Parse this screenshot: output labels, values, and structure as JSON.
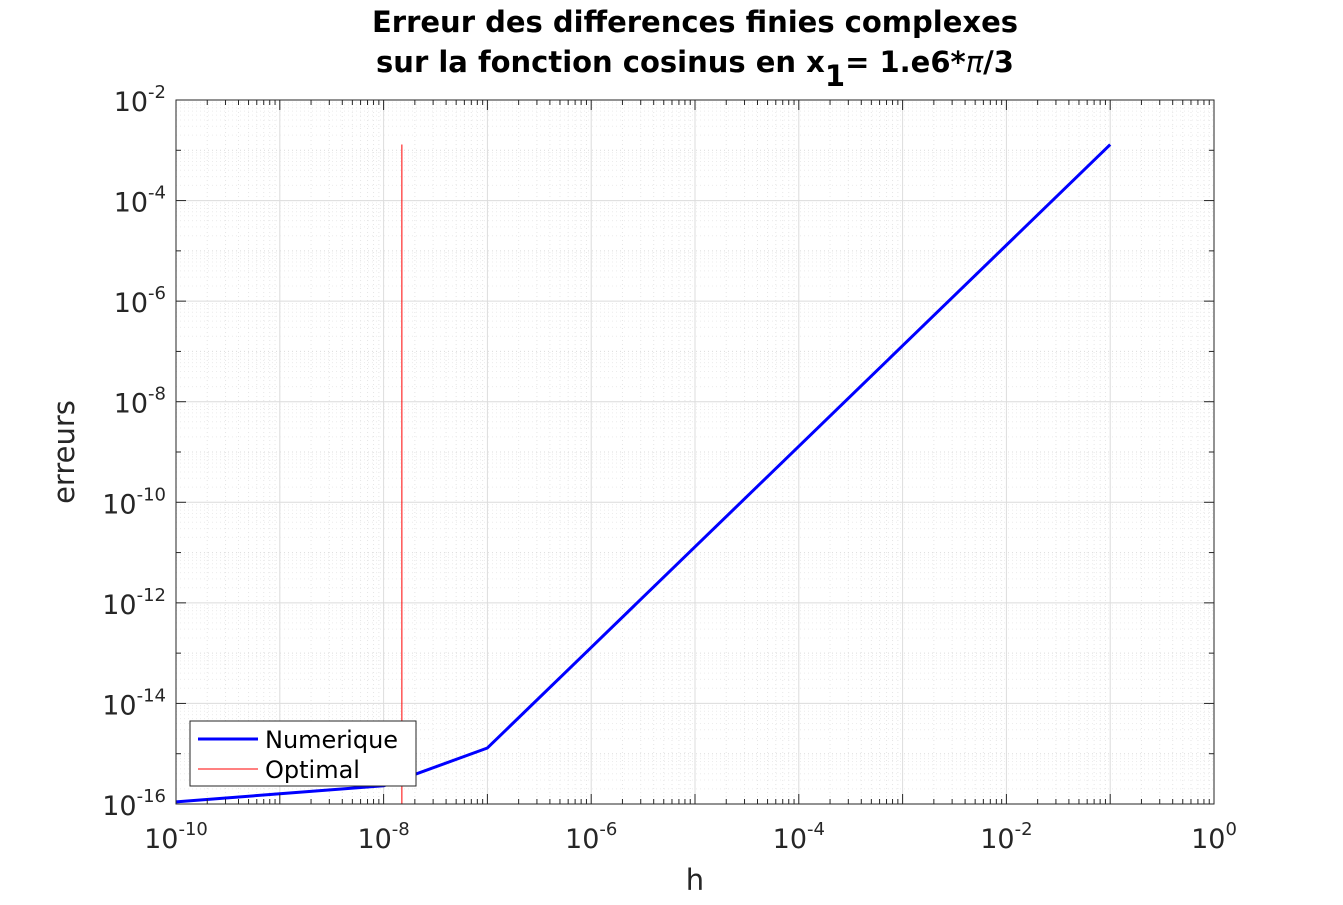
{
  "chart_data": {
    "type": "line",
    "title_line1": "Erreur des differences finies complexes",
    "title_line2_pre": "sur la fonction cosinus en x",
    "title_line2_sub": "1",
    "title_line2_post": "= 1.e6*",
    "title_line2_pi": "π",
    "title_line2_end": "/3",
    "xlabel": "h",
    "ylabel": "erreurs",
    "xscale": "log",
    "yscale": "log",
    "xlim": [
      1e-10,
      1
    ],
    "ylim": [
      1e-16,
      0.01
    ],
    "grid": true,
    "minor_grid": true,
    "legend_location": "bottom-left",
    "x_ticks": [
      {
        "base": "10",
        "exp": "-10",
        "value": 1e-10
      },
      {
        "base": "10",
        "exp": "-8",
        "value": 1e-08
      },
      {
        "base": "10",
        "exp": "-6",
        "value": 1e-06
      },
      {
        "base": "10",
        "exp": "-4",
        "value": 0.0001
      },
      {
        "base": "10",
        "exp": "-2",
        "value": 0.01
      },
      {
        "base": "10",
        "exp": "0",
        "value": 1
      }
    ],
    "y_ticks": [
      {
        "base": "10",
        "exp": "-16",
        "value": 1e-16
      },
      {
        "base": "10",
        "exp": "-14",
        "value": 1e-14
      },
      {
        "base": "10",
        "exp": "-12",
        "value": 1e-12
      },
      {
        "base": "10",
        "exp": "-10",
        "value": 1e-10
      },
      {
        "base": "10",
        "exp": "-8",
        "value": 1e-08
      },
      {
        "base": "10",
        "exp": "-6",
        "value": 1e-06
      },
      {
        "base": "10",
        "exp": "-4",
        "value": 0.0001
      },
      {
        "base": "10",
        "exp": "-2",
        "value": 0.01
      }
    ],
    "series": [
      {
        "name": "Numerique",
        "color": "#0000ff",
        "x": [
          1e-10,
          1e-09,
          1e-08,
          1e-07,
          1e-06,
          1e-05,
          0.0001,
          0.001,
          0.01,
          0.1
        ],
        "y": [
          1.1e-16,
          1.6e-16,
          2.3e-16,
          1.3e-15,
          1.3e-13,
          1.3e-11,
          1.3e-09,
          1.3e-07,
          1.3e-05,
          0.0013
        ]
      },
      {
        "name": "Optimal",
        "color": "#ff0000",
        "x": [
          1.5e-08,
          1.5e-08
        ],
        "y": [
          1e-16,
          0.0013
        ]
      }
    ]
  }
}
